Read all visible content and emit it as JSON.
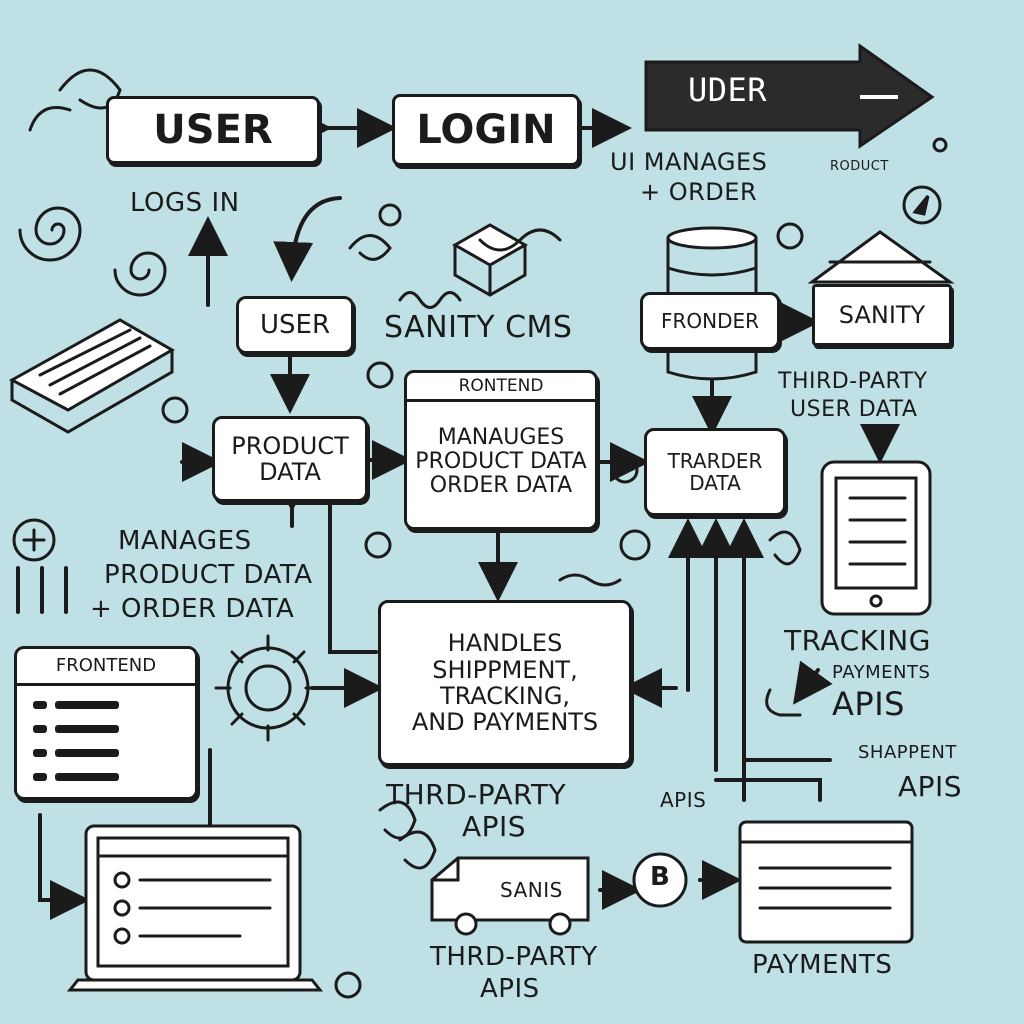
{
  "diagram": {
    "top_row": {
      "user": "USER",
      "login": "LOGIN",
      "banner": "UDER"
    },
    "captions": {
      "logs_in": "LOGS IN",
      "ui_manages_1": "UI MANAGES",
      "ui_manages_2": "+ ORDER",
      "product_small": "RODUCT",
      "sanity_cms": "SANITY CMS",
      "third_party_user_1": "THIRD-PARTY",
      "third_party_user_2": "USER DATA",
      "manages_left_1": "MANAGES",
      "manages_left_2": "PRODUCT DATA",
      "manages_left_3": "+ ORDER DATA",
      "tracking_1": "TRACKING",
      "tracking_2": "PAYMENTS",
      "tracking_3": "APIS",
      "shappent_1": "SHAPPENT",
      "shappent_2": "APIS",
      "third_party_mid_1": "THRD-PARTY",
      "third_party_mid_2": "APIS",
      "apis_small": "APIS",
      "third_party_bottom_1": "THRD-PARTY",
      "third_party_bottom_2": "APIS",
      "payments": "PAYMENTS"
    },
    "boxes": {
      "user2": "USER",
      "product_1": "PRODUCT",
      "product_2": "DATA",
      "frontend_title": "RONTEND",
      "frontend_1": "MANAUGES",
      "frontend_2": "PRODUCT DATA",
      "frontend_3": "ORDER DATA",
      "froncer": "FRONDER",
      "sanity": "SANITY",
      "trarder_1": "TRARDER",
      "trarder_2": "DATA",
      "handles_1": "HANDLES",
      "handles_2": "SHIPPMENT,",
      "handles_3": "TRACKING,",
      "handles_4": "AND PAYMENTS",
      "left_frontend": "FRONTEND",
      "van_label": "SANIS"
    },
    "colors": {
      "background": "#bfe1e5",
      "ink": "#1b1b1b",
      "paper": "#ffffff"
    }
  }
}
